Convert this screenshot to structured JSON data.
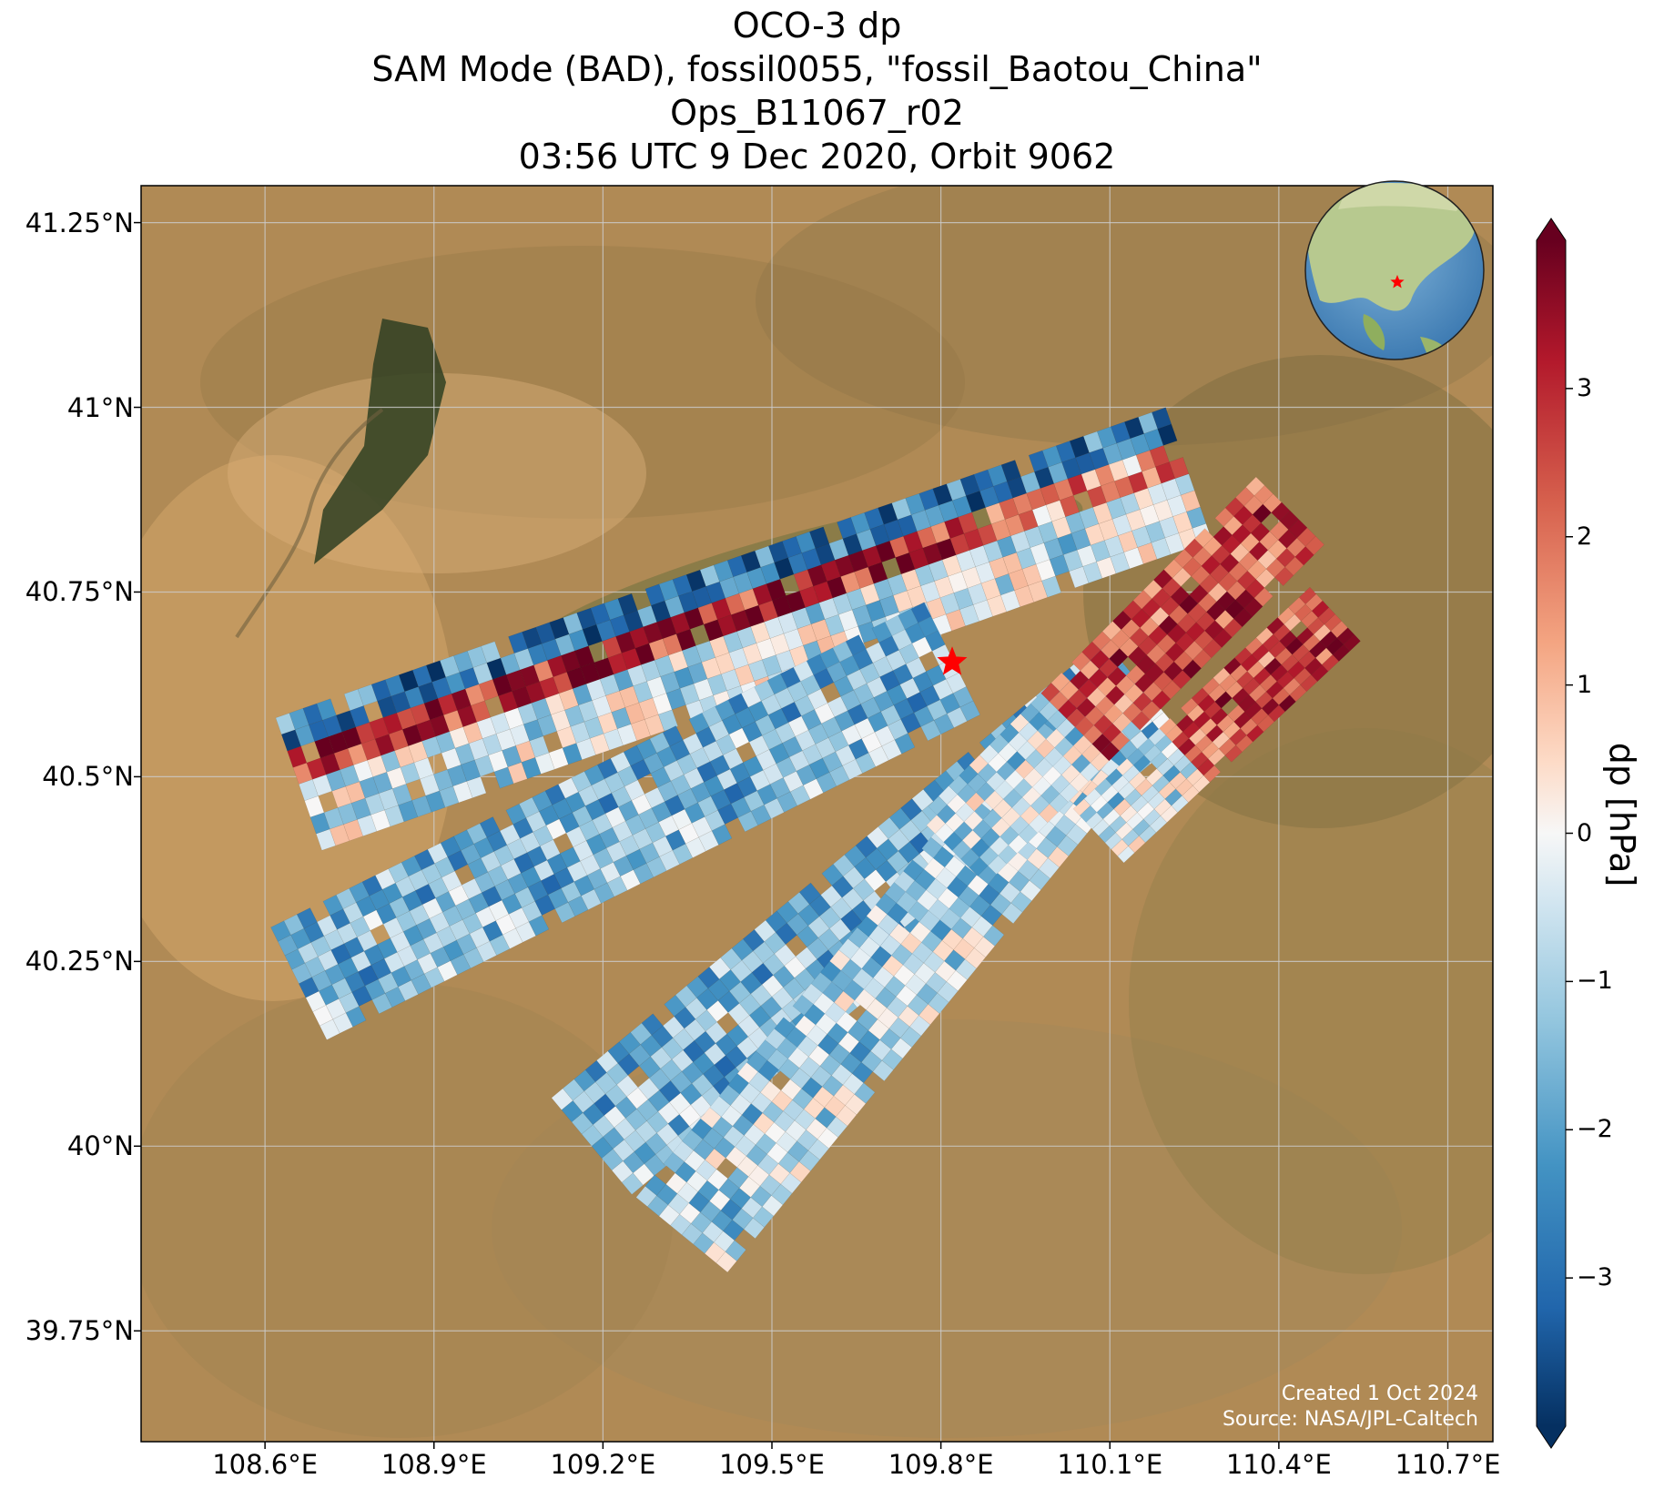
{
  "title": {
    "line1": "OCO-3 dp",
    "line2": "SAM Mode (BAD), fossil0055, \"fossil_Baotou_China\"",
    "line3": "Ops_B11067_r02",
    "line4": "03:56 UTC 9 Dec 2020, Orbit 9062"
  },
  "map": {
    "extent": {
      "lon_min": 108.38,
      "lon_max": 110.78,
      "lat_min": 39.6,
      "lat_max": 41.3
    },
    "lat_ticks": [
      {
        "value": 41.25,
        "label": "41.25°N"
      },
      {
        "value": 41.0,
        "label": "41°N"
      },
      {
        "value": 40.75,
        "label": "40.75°N"
      },
      {
        "value": 40.5,
        "label": "40.5°N"
      },
      {
        "value": 40.25,
        "label": "40.25°N"
      },
      {
        "value": 40.0,
        "label": "40°N"
      },
      {
        "value": 39.75,
        "label": "39.75°N"
      }
    ],
    "lon_ticks": [
      {
        "value": 108.6,
        "label": "108.6°E"
      },
      {
        "value": 108.9,
        "label": "108.9°E"
      },
      {
        "value": 109.2,
        "label": "109.2°E"
      },
      {
        "value": 109.5,
        "label": "109.5°E"
      },
      {
        "value": 109.8,
        "label": "109.8°E"
      },
      {
        "value": 110.1,
        "label": "110.1°E"
      },
      {
        "value": 110.4,
        "label": "110.4°E"
      },
      {
        "value": 110.7,
        "label": "110.7°E"
      }
    ],
    "target": {
      "lon": 109.82,
      "lat": 40.655,
      "marker": "red-star"
    },
    "basemap": "satellite-imagery",
    "grid": true,
    "credit_line1": "Created 1 Oct 2024",
    "credit_line2": "Source: NASA/JPL-Caltech",
    "inset": {
      "type": "globe",
      "center": "East Asia",
      "marker": "red-star"
    }
  },
  "colorbar": {
    "label": "dp [hPa]",
    "colormap": "RdBu_r",
    "vmin": -4,
    "vmax": 4,
    "extend": "both",
    "ticks": [
      {
        "value": 3,
        "label": "3"
      },
      {
        "value": 2,
        "label": "2"
      },
      {
        "value": 1,
        "label": "1"
      },
      {
        "value": 0,
        "label": "0"
      },
      {
        "value": -1,
        "label": "−1"
      },
      {
        "value": -2,
        "label": "−2"
      },
      {
        "value": -3,
        "label": "−3"
      }
    ]
  },
  "swaths": [
    {
      "name": "swath-1",
      "lon_start": 108.66,
      "lat_start": 40.49,
      "lon_end": 110.24,
      "lat_end": 40.91,
      "width_deg": 0.19,
      "pattern": "blue-north-red-middle"
    },
    {
      "name": "swath-2",
      "lon_start": 108.66,
      "lat_start": 40.22,
      "lon_end": 109.82,
      "lat_end": 40.66,
      "width_deg": 0.17,
      "pattern": "blue"
    },
    {
      "name": "swath-3",
      "lon_start": 109.18,
      "lat_start": 40.0,
      "lon_end": 110.16,
      "lat_end": 40.62,
      "width_deg": 0.17,
      "pattern": "blue"
    },
    {
      "name": "swath-4",
      "lon_start": 109.34,
      "lat_start": 39.88,
      "lon_end": 110.06,
      "lat_end": 40.55,
      "width_deg": 0.16,
      "pattern": "mixed"
    },
    {
      "name": "swath-5",
      "lon_start": 109.82,
      "lat_start": 40.4,
      "lon_end": 110.42,
      "lat_end": 40.86,
      "width_deg": 0.13,
      "pattern": "red-east"
    },
    {
      "name": "swath-6",
      "lon_start": 110.08,
      "lat_start": 40.42,
      "lon_end": 110.5,
      "lat_end": 40.72,
      "width_deg": 0.1,
      "pattern": "red-east"
    }
  ]
}
